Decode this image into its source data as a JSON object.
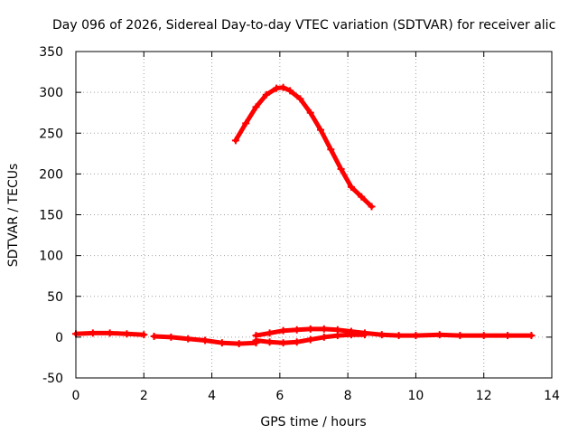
{
  "chart_data": {
    "type": "scatter",
    "title": "Day 096 of 2026, Sidereal Day-to-day VTEC variation (SDTVAR) for receiver alic",
    "xlabel": "GPS time / hours",
    "ylabel": "SDTVAR / TECUs",
    "xlim": [
      0,
      14
    ],
    "ylim": [
      -50,
      350
    ],
    "xticks": [
      "0",
      "2",
      "4",
      "6",
      "8",
      "10",
      "12",
      "14"
    ],
    "yticks": [
      "-50",
      "0",
      "50",
      "100",
      "150",
      "200",
      "250",
      "300",
      "350"
    ],
    "grid": true,
    "marker_color": "#ff0000",
    "series": [
      {
        "x": [
          4.7,
          5.0,
          5.3,
          5.6,
          5.9,
          6.1,
          6.3,
          6.6,
          6.9,
          7.2,
          7.5,
          7.8,
          8.1,
          8.4,
          8.7
        ],
        "y": [
          241,
          262,
          282,
          297,
          305,
          306,
          302,
          292,
          275,
          254,
          230,
          206,
          184,
          172,
          160
        ]
      },
      {
        "x": [
          0.0,
          0.5,
          1.0,
          1.5,
          2.0
        ],
        "y": [
          4,
          5,
          5,
          4,
          3
        ]
      },
      {
        "x": [
          2.3,
          2.8,
          3.3,
          3.8,
          4.3,
          4.8,
          5.3
        ],
        "y": [
          1,
          0,
          -2,
          -4,
          -7,
          -8,
          -7
        ]
      },
      {
        "x": [
          5.3,
          5.7,
          6.1,
          6.5,
          6.9,
          7.3,
          7.7,
          8.1,
          8.5,
          9.0,
          9.5,
          10.0
        ],
        "y": [
          2,
          5,
          8,
          9,
          10,
          10,
          9,
          7,
          5,
          3,
          2,
          2
        ]
      },
      {
        "x": [
          5.3,
          5.7,
          6.1,
          6.5,
          6.9,
          7.3,
          7.7,
          8.1,
          8.5
        ],
        "y": [
          -4,
          -6,
          -7,
          -6,
          -3,
          0,
          2,
          3,
          3
        ]
      },
      {
        "x": [
          10.0,
          10.7,
          11.3,
          12.0,
          12.7,
          13.4
        ],
        "y": [
          2,
          3,
          2,
          2,
          2,
          2
        ]
      }
    ]
  }
}
